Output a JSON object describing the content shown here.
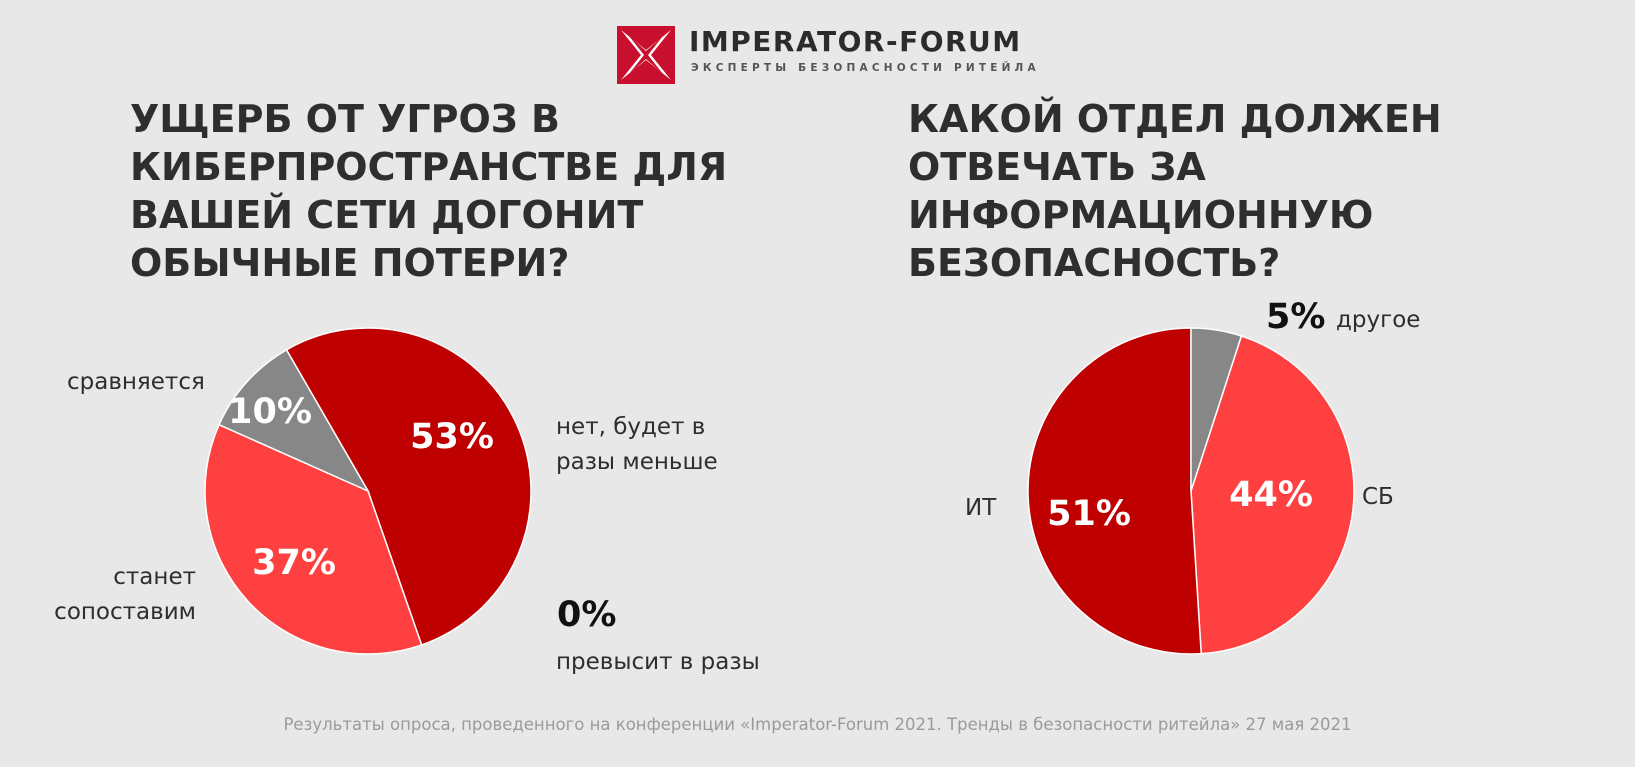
{
  "logo": {
    "name": "IMPERATOR-FORUM",
    "tagline": "ЭКСПЕРТЫ БЕЗОПАСНОСТИ РИТЕЙЛА",
    "icon": "red-square-x-icon"
  },
  "colors": {
    "background": "#e9e8e8",
    "dark_red": "#bf0000",
    "light_red": "#ff4040",
    "gray": "#878787"
  },
  "chart_data": [
    {
      "type": "pie",
      "title": "УЩЕРБ ОТ УГРОЗ В\nКИБЕРПРОСТРАНСТВЕ ДЛЯ\nВАШЕЙ СЕТИ ДОГОНИТ\nОБЫЧНЫЕ ПОТЕРИ?",
      "slices": [
        {
          "label": "нет, будет в\nразы меньше",
          "value": 53,
          "display": "53%",
          "color": "#bf0000"
        },
        {
          "label": "станет\nсопоставим",
          "value": 37,
          "display": "37%",
          "color": "#ff4040"
        },
        {
          "label": "сравняется",
          "value": 10,
          "display": "10%",
          "color": "#878787"
        },
        {
          "label": "превысит в разы",
          "value": 0,
          "display": "0%",
          "color": "#bf0000"
        }
      ]
    },
    {
      "type": "pie",
      "title": "КАКОЙ ОТДЕЛ ДОЛЖЕН\nОТВЕЧАТЬ ЗА\nИНФОРМАЦИОННУЮ\nБЕЗОПАСНОСТЬ?",
      "slices": [
        {
          "label": "ИТ",
          "value": 51,
          "display": "51%",
          "color": "#bf0000"
        },
        {
          "label": "СБ",
          "value": 44,
          "display": "44%",
          "color": "#ff4040"
        },
        {
          "label": "другое",
          "value": 5,
          "display": "5%",
          "color": "#878787"
        }
      ]
    }
  ],
  "footnote": "Результаты опроса, проведенного на конференции «Imperator-Forum 2021. Тренды в безопасности ритейла» 27 мая 2021"
}
